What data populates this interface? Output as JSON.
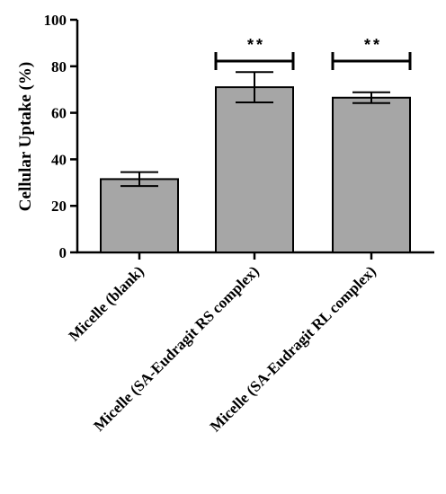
{
  "chart_data": {
    "type": "bar",
    "title": "",
    "xlabel": "",
    "ylabel": "Cellular Uptake (%)",
    "ylim": [
      0,
      100
    ],
    "yticks": [
      "0",
      "20",
      "40",
      "60",
      "80",
      "100"
    ],
    "categories": [
      "Micelle (blank)",
      "Micelle (SA-Eudragit RS complex)",
      "Micelle (SA-Eudragit RL complex)"
    ],
    "values": [
      31.5,
      71,
      66.5
    ],
    "errors": [
      3,
      6.5,
      2.3
    ],
    "bar_color": "#a6a6a6",
    "significance": [
      "",
      "**",
      "**"
    ],
    "grid": false
  }
}
